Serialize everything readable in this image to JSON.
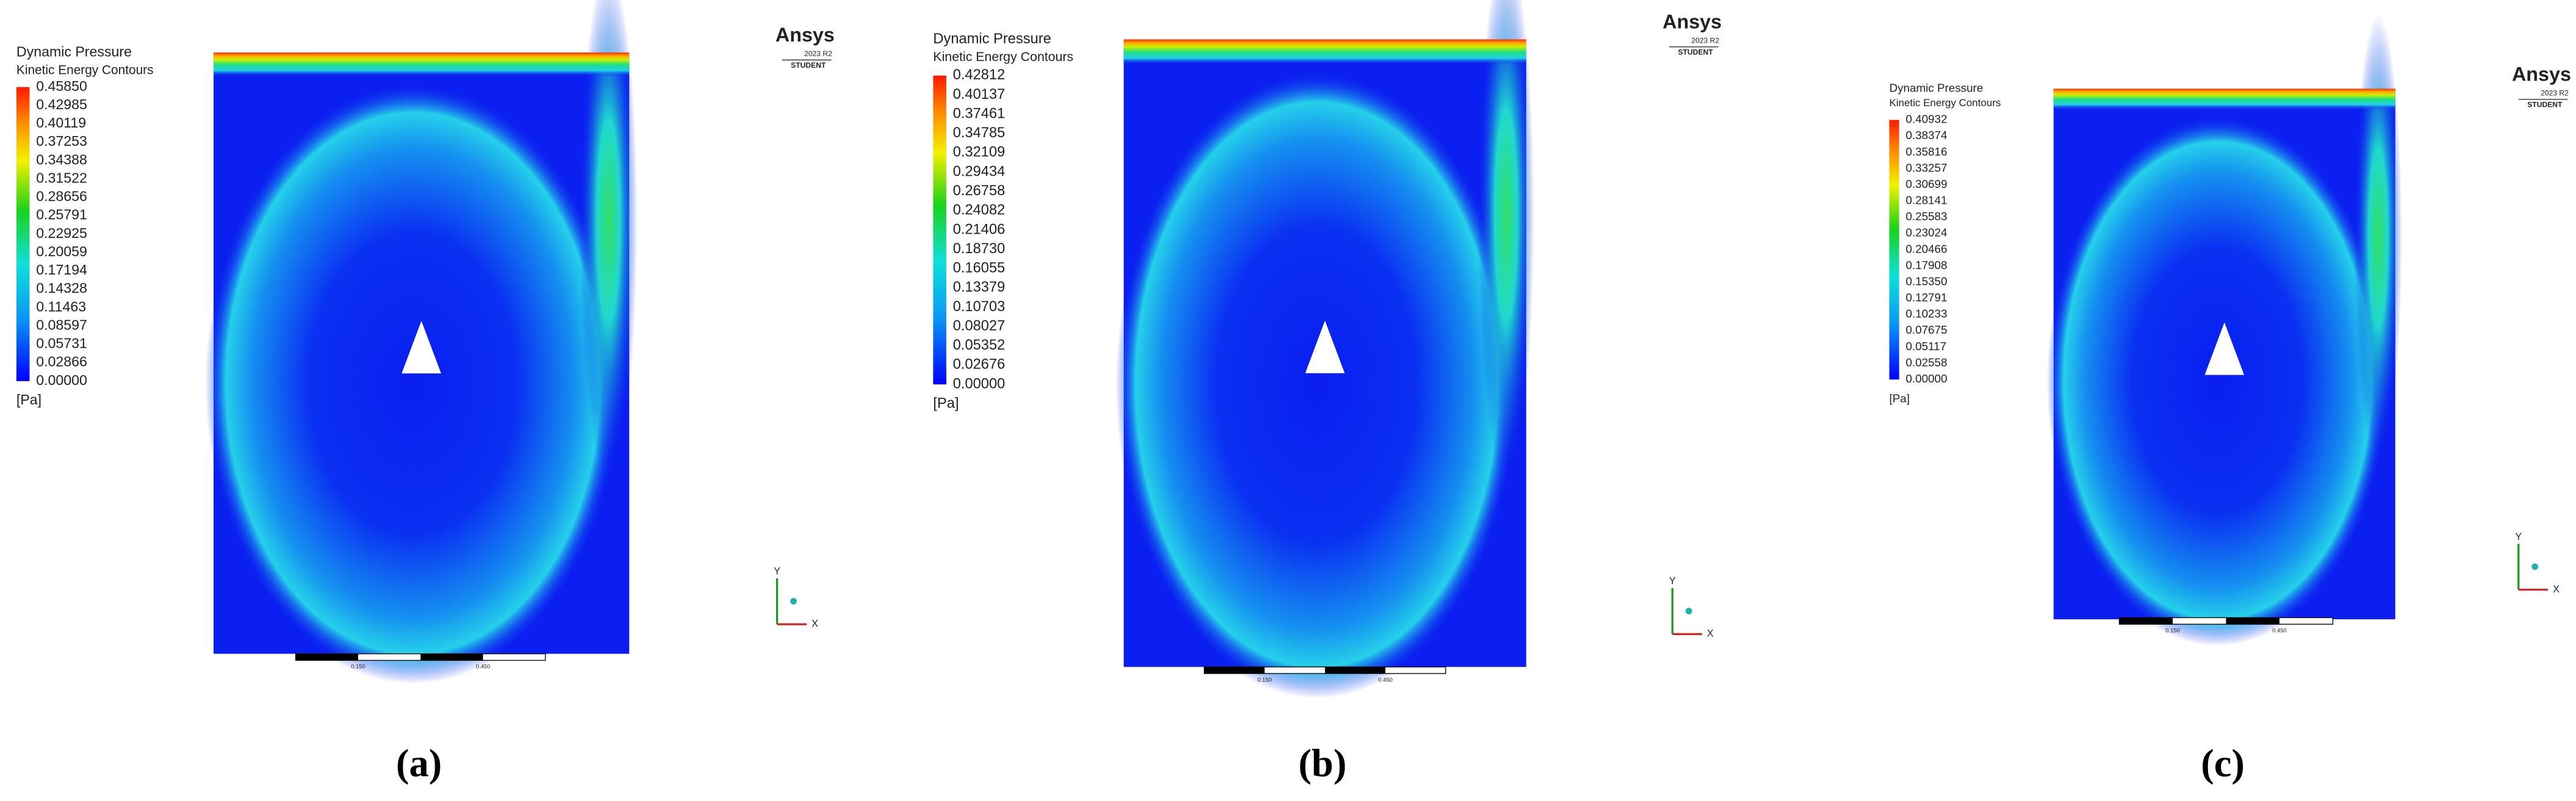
{
  "panels": [
    {
      "caption": "(a)",
      "legend": {
        "title": "Dynamic Pressure",
        "subtitle": "Kinetic Energy Contours",
        "unit": "[Pa]",
        "values": [
          "0.45850",
          "0.42985",
          "0.40119",
          "0.37253",
          "0.34388",
          "0.31522",
          "0.28656",
          "0.25791",
          "0.22925",
          "0.20059",
          "0.17194",
          "0.14328",
          "0.11463",
          "0.08597",
          "0.05731",
          "0.02866",
          "0.00000"
        ]
      },
      "logo": {
        "brand": "Ansys",
        "version": "2023 R2",
        "edition": "STUDENT"
      },
      "scale": [
        "0.150",
        "0.450"
      ],
      "axes": {
        "y": "Y",
        "x": "X"
      }
    },
    {
      "caption": "(b)",
      "legend": {
        "title": "Dynamic Pressure",
        "subtitle": "Kinetic Energy Contours",
        "unit": "[Pa]",
        "values": [
          "0.42812",
          "0.40137",
          "0.37461",
          "0.34785",
          "0.32109",
          "0.29434",
          "0.26758",
          "0.24082",
          "0.21406",
          "0.18730",
          "0.16055",
          "0.13379",
          "0.10703",
          "0.08027",
          "0.05352",
          "0.02676",
          "0.00000"
        ]
      },
      "logo": {
        "brand": "Ansys",
        "version": "2023 R2",
        "edition": "STUDENT"
      },
      "scale": [
        "0.150",
        "0.450"
      ],
      "axes": {
        "y": "Y",
        "x": "X"
      }
    },
    {
      "caption": "(c)",
      "legend": {
        "title": "Dynamic Pressure",
        "subtitle": "Kinetic Energy Contours",
        "unit": "[Pa]",
        "values": [
          "0.40932",
          "0.38374",
          "0.35816",
          "0.33257",
          "0.30699",
          "0.28141",
          "0.25583",
          "0.23024",
          "0.20466",
          "0.17908",
          "0.15350",
          "0.12791",
          "0.10233",
          "0.07675",
          "0.05117",
          "0.02558",
          "0.00000"
        ]
      },
      "logo": {
        "brand": "Ansys",
        "version": "2023 R2",
        "edition": "STUDENT"
      },
      "scale": [
        "0.150",
        "0.450"
      ],
      "axes": {
        "y": "Y",
        "x": "X"
      }
    }
  ]
}
